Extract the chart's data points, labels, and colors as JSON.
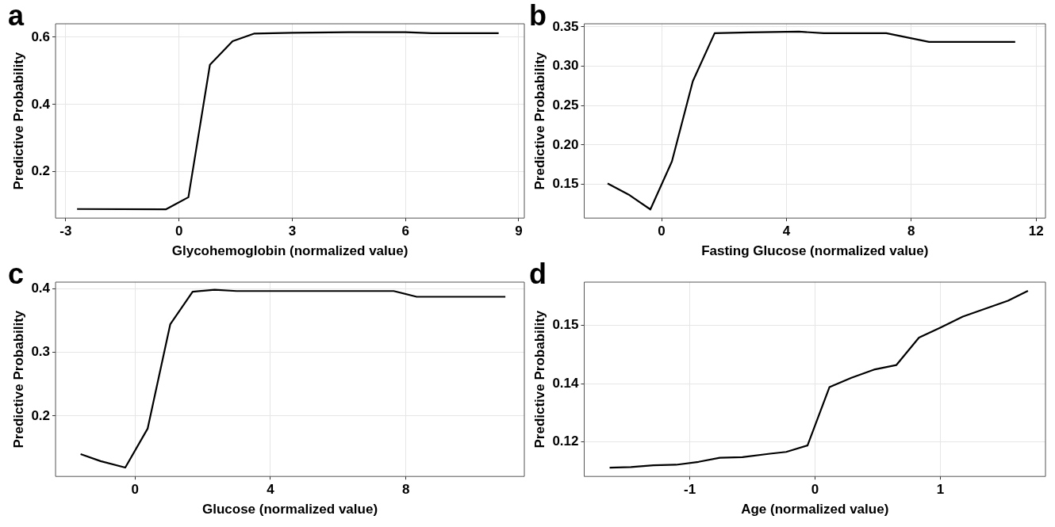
{
  "chart_data": [
    {
      "type": "line",
      "annotations": [
        "a"
      ],
      "xlabel": "Glycohemoglobin (normalized value)",
      "ylabel": "Predictive Probability",
      "xlim": [
        -3.27,
        9.15
      ],
      "xticks": [
        -3,
        0,
        3,
        6,
        9
      ],
      "ylim": [
        0.062,
        0.64
      ],
      "yticks": [
        0.2,
        0.4,
        0.6
      ],
      "grid": true,
      "series": [
        {
          "color": "#000000",
          "x": [
            -2.7,
            -0.35,
            0.25,
            0.82,
            1.42,
            2.0,
            3.0,
            4.5,
            6.0,
            6.7,
            8.47
          ],
          "values": [
            0.089,
            0.088,
            0.124,
            0.518,
            0.588,
            0.611,
            0.613,
            0.615,
            0.615,
            0.612,
            0.612
          ]
        }
      ]
    },
    {
      "type": "line",
      "annotations": [
        "b"
      ],
      "xlabel": "Fasting Glucose (normalized value)",
      "ylabel": "Predictive Probability",
      "xlim": [
        -2.48,
        12.3
      ],
      "xticks": [
        0,
        4,
        8,
        12
      ],
      "ylim": [
        0.107,
        0.354
      ],
      "yticks": [
        {
          "value": 0.15,
          "label": "0.15"
        },
        {
          "value": 0.2,
          "label": "0.20"
        },
        {
          "value": 0.25,
          "label": "0.25"
        },
        {
          "value": 0.3,
          "label": "0.30"
        },
        {
          "value": 0.35,
          "label": "0.35"
        }
      ],
      "grid": true,
      "series": [
        {
          "color": "#000000",
          "x": [
            -1.73,
            -1.06,
            -0.36,
            0.33,
            1.0,
            1.7,
            2.8,
            4.4,
            5.2,
            7.2,
            8.57,
            10.1,
            11.33
          ],
          "values": [
            0.151,
            0.137,
            0.118,
            0.179,
            0.281,
            0.342,
            0.343,
            0.344,
            0.342,
            0.342,
            0.331,
            0.331,
            0.331
          ]
        }
      ]
    },
    {
      "type": "line",
      "annotations": [
        "c"
      ],
      "xlabel": "Glucose (normalized value)",
      "ylabel": "Predictive Probability",
      "xlim": [
        -2.35,
        11.5
      ],
      "xticks": [
        0,
        4,
        8
      ],
      "ylim": [
        0.105,
        0.41
      ],
      "yticks": [
        0.2,
        0.3,
        0.4
      ],
      "grid": true,
      "series": [
        {
          "color": "#000000",
          "x": [
            -1.61,
            -1.02,
            -0.29,
            0.37,
            1.04,
            1.7,
            2.35,
            3.0,
            7.64,
            8.32,
            10.94
          ],
          "values": [
            0.14,
            0.129,
            0.119,
            0.18,
            0.344,
            0.395,
            0.398,
            0.396,
            0.396,
            0.387,
            0.387
          ]
        }
      ]
    },
    {
      "type": "line",
      "annotations": [
        "d"
      ],
      "xlabel": "Age (normalized value)",
      "ylabel": "Predictive Probability",
      "xlim": [
        -1.843,
        1.84
      ],
      "xticks": [
        -1,
        0,
        1
      ],
      "ylim": [
        0.1191,
        0.1524
      ],
      "yticks": [
        {
          "value": 0.125,
          "label": "0.12"
        },
        {
          "value": 0.135,
          "label": "0.14"
        },
        {
          "value": 0.145,
          "label": "0.15"
        }
      ],
      "grid": true,
      "series": [
        {
          "color": "#000000",
          "x": [
            -1.64,
            -1.47,
            -1.29,
            -1.11,
            -0.93,
            -0.76,
            -0.58,
            -0.36,
            -0.23,
            -0.06,
            0.115,
            0.29,
            0.47,
            0.65,
            0.83,
            1.0,
            1.18,
            1.54,
            1.7
          ],
          "values": [
            0.1206,
            0.1207,
            0.121,
            0.1211,
            0.1216,
            0.1223,
            0.1224,
            0.123,
            0.1233,
            0.1244,
            0.1344,
            0.136,
            0.1374,
            0.1382,
            0.1429,
            0.1446,
            0.1465,
            0.1492,
            0.1509
          ]
        }
      ]
    }
  ]
}
